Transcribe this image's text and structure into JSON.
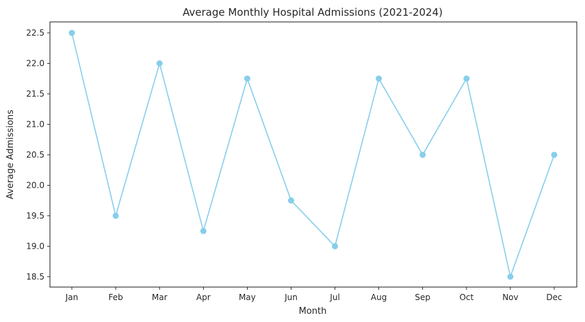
{
  "chart_data": {
    "type": "line",
    "title": "Average Monthly Hospital Admissions (2021-2024)",
    "xlabel": "Month",
    "ylabel": "Average Admissions",
    "categories": [
      "Jan",
      "Feb",
      "Mar",
      "Apr",
      "May",
      "Jun",
      "Jul",
      "Aug",
      "Sep",
      "Oct",
      "Nov",
      "Dec"
    ],
    "series": [
      {
        "values": [
          22.5,
          19.5,
          22.0,
          19.25,
          21.75,
          19.75,
          19.0,
          21.75,
          20.5,
          21.75,
          18.5,
          20.5
        ]
      }
    ],
    "ylim": [
      18.33,
      22.68
    ],
    "yticks": [
      "18.5",
      "19.0",
      "19.5",
      "20.0",
      "20.5",
      "21.0",
      "21.5",
      "22.0",
      "22.5"
    ],
    "grid": false,
    "marker": "circle",
    "color": "#87ceeb"
  }
}
